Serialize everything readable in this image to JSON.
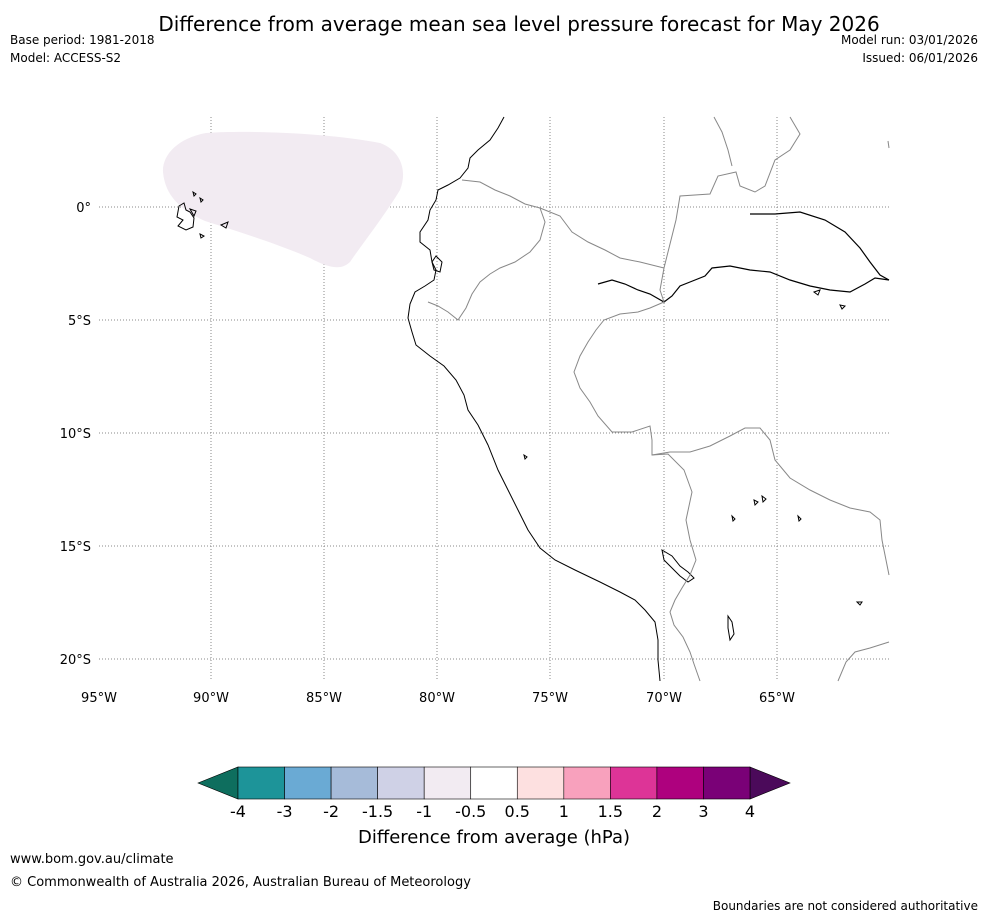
{
  "title": "Difference from average mean sea level pressure forecast for May 2026",
  "meta_left": {
    "base_period": "Base period: 1981-2018",
    "model": "Model: ACCESS-S2"
  },
  "meta_right": {
    "model_run": "Model run: 03/01/2026",
    "issued": "Issued: 06/01/2026"
  },
  "map": {
    "lon_ticks": [
      "95°W",
      "90°W",
      "85°W",
      "80°W",
      "75°W",
      "70°W",
      "65°W"
    ],
    "lat_ticks": [
      "0°",
      "5°S",
      "10°S",
      "15°S",
      "20°S"
    ],
    "anomaly_region_color": "#f2ebf2"
  },
  "colorbar": {
    "label": "Difference from average (hPa)",
    "ticks": [
      "-4",
      "-3",
      "-2",
      "-1.5",
      "-1",
      "-0.5",
      "0.5",
      "1",
      "1.5",
      "2",
      "3",
      "4"
    ],
    "low_extend_color": "#0e6e5e",
    "high_extend_color": "#4b0a5a",
    "colors": [
      "#1d9499",
      "#6aaad4",
      "#a6bbd9",
      "#cfd1e6",
      "#f2ebf2",
      "#ffffff",
      "#fde0e0",
      "#f8a1bd",
      "#dd3497",
      "#ae017e",
      "#7a0177"
    ]
  },
  "footer": {
    "url": "www.bom.gov.au/climate",
    "copyright": "© Commonwealth of Australia 2026, Australian Bureau of Meteorology",
    "disclaimer": "Boundaries are not considered authoritative"
  }
}
